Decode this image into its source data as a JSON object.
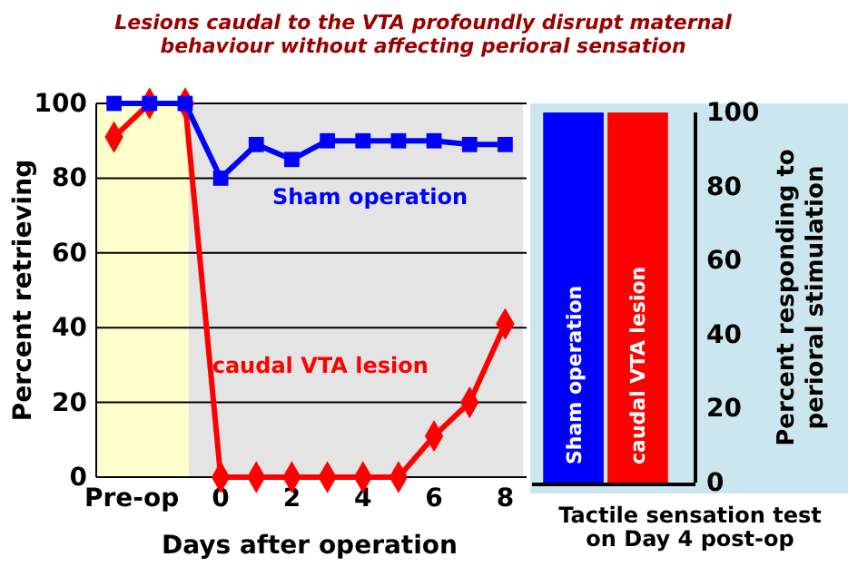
{
  "chart_data": [
    {
      "type": "line",
      "title": "Lesions caudal to the VTA profoundly disrupt maternal behaviour without affecting perioral sensation",
      "xlabel": "Days after operation",
      "ylabel": "Percent retrieving",
      "xlim": [
        -3.5,
        8.5
      ],
      "xticks": [
        {
          "value": -2.5,
          "label": "Pre-op"
        },
        0,
        2,
        4,
        6,
        8
      ],
      "ylim": [
        0,
        100
      ],
      "yticks": [
        0,
        20,
        40,
        60,
        80,
        100
      ],
      "grid": "y",
      "x": [
        -3,
        -2,
        -1,
        0,
        1,
        2,
        3,
        4,
        5,
        6,
        7,
        8
      ],
      "bands": [
        {
          "axis": "x",
          "from": -3.5,
          "to": -0.9,
          "color": "#ffffcc"
        }
      ],
      "series": [
        {
          "name": "Sham operation",
          "color": "#0000ff",
          "marker": "square",
          "values": [
            100,
            100,
            100,
            80,
            89,
            85,
            90,
            90,
            90,
            90,
            89,
            89
          ]
        },
        {
          "name": "caudal VTA lesion",
          "color": "#ff0000",
          "marker": "diamond",
          "values": [
            91,
            100,
            100,
            0,
            0,
            0,
            0,
            0,
            0,
            11,
            20,
            41
          ]
        }
      ]
    },
    {
      "type": "bar",
      "xlabel": "Tactile sensation test on Day 4 post-op",
      "ylabel": "Percent responding to perioral stimulation",
      "categories": [
        "Sham operation",
        "caudal VTA lesion"
      ],
      "values": [
        100,
        100
      ],
      "colors": [
        "#0000ff",
        "#ff0000"
      ],
      "ylim": [
        0,
        100
      ],
      "yticks": [
        0,
        20,
        40,
        60,
        80,
        100
      ]
    }
  ]
}
